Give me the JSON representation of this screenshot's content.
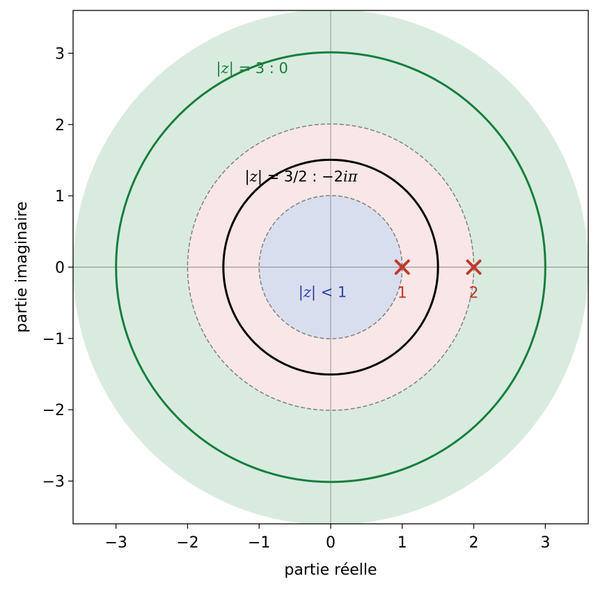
{
  "chart_data": {
    "type": "scatter",
    "title": "",
    "xlabel": "partie réelle",
    "ylabel": "partie imaginaire",
    "xlim": [
      -3.6,
      3.6
    ],
    "ylim": [
      -3.6,
      3.6
    ],
    "xticks": [
      -3,
      -2,
      -1,
      0,
      1,
      2,
      3
    ],
    "yticks": [
      -3,
      -2,
      -1,
      0,
      1,
      2,
      3
    ],
    "tick_labels": {
      "x": [
        "−3",
        "−2",
        "−1",
        "0",
        "1",
        "2",
        "3"
      ],
      "y": [
        "−3",
        "−2",
        "−1",
        "0",
        "1",
        "2",
        "3"
      ]
    },
    "grid": false,
    "regions": [
      {
        "inner_radius": 2,
        "outer_radius": 3.6,
        "color": "#d9ebdf"
      },
      {
        "inner_radius": 1,
        "outer_radius": 2,
        "color": "#f8e7e6"
      },
      {
        "inner_radius": 0,
        "outer_radius": 1,
        "color": "#d9deef"
      }
    ],
    "boundary_circles": [
      {
        "radius": 1,
        "style": "dashed",
        "color": "#808080"
      },
      {
        "radius": 2,
        "style": "dashed",
        "color": "#808080"
      }
    ],
    "contours": [
      {
        "radius": 1.5,
        "color": "#000000",
        "label_parts": [
          "|",
          "z",
          "| = 3/2 : −2",
          "iπ"
        ],
        "label_at": [
          -1.2,
          1.2
        ]
      },
      {
        "radius": 3,
        "color": "#157f3b",
        "label_parts": [
          "|",
          "z",
          "| = 3 : 0",
          ""
        ],
        "label_at": [
          -1.6,
          2.72
        ]
      }
    ],
    "poles": [
      {
        "x": 1,
        "y": 0,
        "label": "1"
      },
      {
        "x": 2,
        "y": 0,
        "label": "2"
      }
    ],
    "pole_color": "#c0392b",
    "region_label": {
      "parts": [
        "|",
        "z",
        "| < 1"
      ],
      "at": [
        -0.45,
        -0.42
      ],
      "color": "#2a3fa6"
    }
  }
}
